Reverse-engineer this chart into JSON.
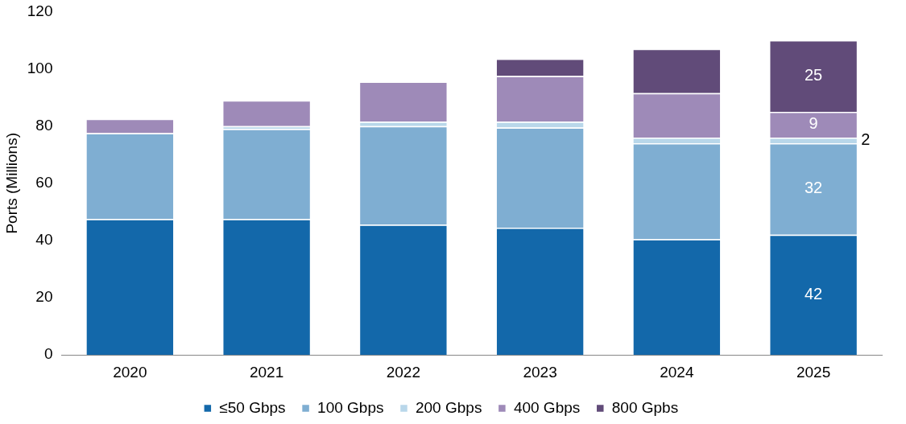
{
  "chart_data": {
    "type": "bar",
    "stacked": true,
    "ylabel": "Ports (Millions)",
    "categories": [
      "2020",
      "2021",
      "2022",
      "2023",
      "2024",
      "2025"
    ],
    "series": [
      {
        "name": "≤50 Gbps",
        "color": "#1368aa",
        "values": [
          47.5,
          47.5,
          45.5,
          44.5,
          40.5,
          42
        ],
        "value_labels": [
          null,
          null,
          null,
          null,
          null,
          "42"
        ]
      },
      {
        "name": "100 Gbps",
        "color": "#7faed2",
        "values": [
          30,
          31.5,
          34.5,
          35,
          33.5,
          32
        ],
        "value_labels": [
          null,
          null,
          null,
          null,
          null,
          "32"
        ]
      },
      {
        "name": "200 Gbps",
        "color": "#b9d7ea",
        "values": [
          0,
          1,
          1.5,
          2,
          2,
          2
        ],
        "value_labels": [
          null,
          null,
          null,
          null,
          null,
          "2"
        ]
      },
      {
        "name": "400 Gbps",
        "color": "#9e8ab8",
        "values": [
          5,
          9,
          14,
          16,
          15.5,
          9
        ],
        "value_labels": [
          null,
          null,
          null,
          null,
          null,
          "9"
        ]
      },
      {
        "name": "800 Gpbs",
        "color": "#614b79",
        "values": [
          0,
          0,
          0,
          6,
          15.5,
          25
        ],
        "value_labels": [
          null,
          null,
          null,
          null,
          null,
          "25"
        ]
      }
    ],
    "ylim": [
      0,
      120
    ],
    "yticks": [
      0,
      20,
      40,
      60,
      80,
      100,
      120
    ],
    "grid": false,
    "legend": "bottom"
  }
}
